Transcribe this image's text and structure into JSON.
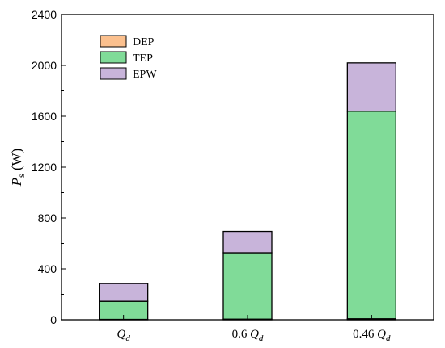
{
  "chart_data": {
    "type": "bar",
    "stacked": true,
    "categories": [
      {
        "parts": [
          {
            "text": "Q",
            "style": "italic"
          },
          {
            "text": "d",
            "style": "italic-sub"
          }
        ]
      },
      {
        "parts": [
          {
            "text": "0.6 ",
            "style": "normal"
          },
          {
            "text": "Q",
            "style": "italic"
          },
          {
            "text": "d",
            "style": "italic-sub"
          }
        ]
      },
      {
        "parts": [
          {
            "text": "0.46 ",
            "style": "normal"
          },
          {
            "text": "Q",
            "style": "italic"
          },
          {
            "text": "d",
            "style": "italic-sub"
          }
        ]
      }
    ],
    "series": [
      {
        "name": "DEP",
        "color": "#FBC08E",
        "values": [
          3,
          5,
          8
        ]
      },
      {
        "name": "TEP",
        "color": "#80DB98",
        "values": [
          142,
          522,
          1632
        ]
      },
      {
        "name": "EPW",
        "color": "#C8B4DA",
        "values": [
          140,
          168,
          380
        ]
      }
    ],
    "ylabel": {
      "main": "P",
      "sub": "s",
      "unit": " (W)"
    },
    "ylim": [
      0,
      2400
    ],
    "yticks": [
      0,
      400,
      800,
      1200,
      1600,
      2000,
      2400
    ],
    "grid": false,
    "legend": "top-left"
  }
}
